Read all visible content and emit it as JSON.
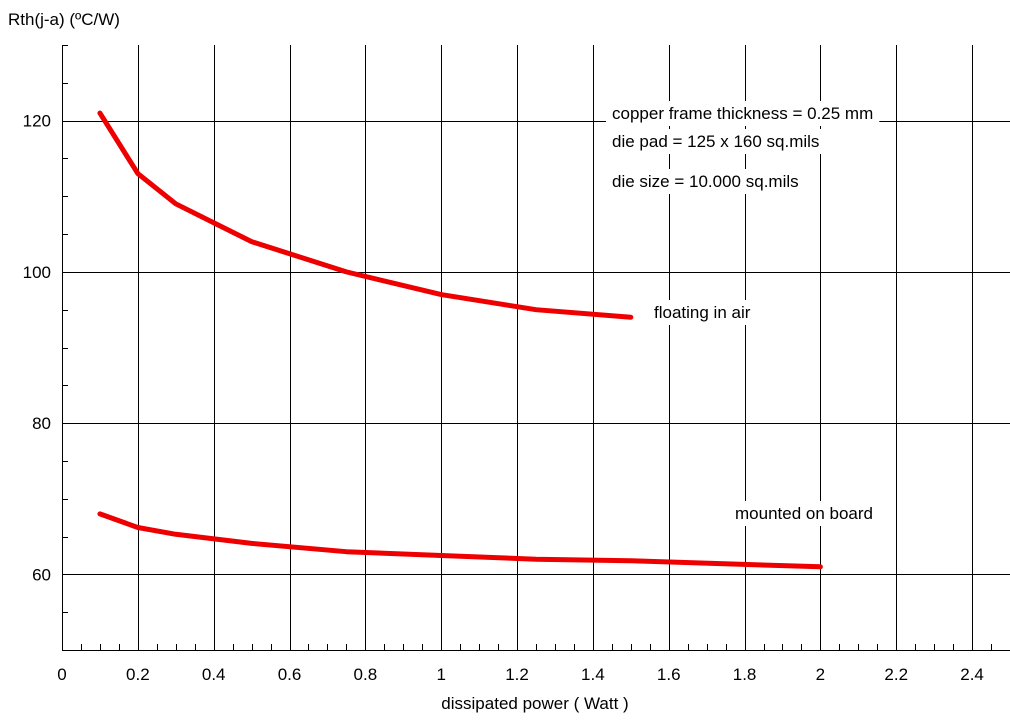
{
  "chart_data": {
    "type": "line",
    "title": "",
    "xlabel": "dissipated power ( Watt )",
    "ylabel": "Rth(j-a) (ºC/W)",
    "xlim": [
      0,
      2.5
    ],
    "ylim": [
      50,
      130
    ],
    "x_ticks": [
      "0",
      "0.2",
      "0.4",
      "0.6",
      "0.8",
      "1",
      "1.2",
      "1.4",
      "1.6",
      "1.8",
      "2",
      "2.2",
      "2.4"
    ],
    "y_ticks": [
      "60",
      "80",
      "100",
      "120"
    ],
    "grid": true,
    "line_color": "#ee0000",
    "series": [
      {
        "name": "floating in air",
        "x": [
          0.1,
          0.2,
          0.3,
          0.4,
          0.5,
          0.75,
          1.0,
          1.25,
          1.5
        ],
        "y": [
          121,
          113,
          109,
          106.5,
          104,
          100,
          97,
          95,
          94
        ]
      },
      {
        "name": "mounted on board",
        "x": [
          0.1,
          0.2,
          0.3,
          0.5,
          0.75,
          1.0,
          1.25,
          1.5,
          2.0
        ],
        "y": [
          68,
          66.2,
          65.3,
          64.1,
          63.0,
          62.5,
          62.0,
          61.8,
          61.0
        ]
      }
    ],
    "annotations": [
      "copper frame thickness = 0.25 mm",
      "die pad = 125 x 160 sq.mils",
      "die size = 10.000 sq.mils"
    ]
  }
}
